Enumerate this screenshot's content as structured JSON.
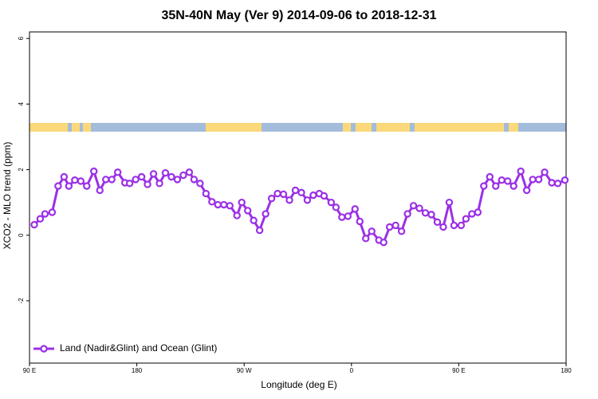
{
  "chart_data": {
    "type": "line",
    "title": "35N-40N May (Ver 9)   2014-09-06 to 2018-12-31",
    "x_label": "Longitude (deg E)",
    "y_label": "XCO2 - MLO trend (ppm)",
    "xlim": [
      90,
      540
    ],
    "ylim": [
      -3.9,
      6.2
    ],
    "xticks": [
      {
        "value": 90,
        "label": "90 E"
      },
      {
        "value": 180,
        "label": "180"
      },
      {
        "value": 270,
        "label": "90 W"
      },
      {
        "value": 360,
        "label": "0"
      },
      {
        "value": 450,
        "label": "90 E"
      },
      {
        "value": 540,
        "label": "180"
      }
    ],
    "yticks": [
      -2,
      0,
      2,
      4,
      6
    ],
    "legend": "bottom-left",
    "x": [
      94,
      99,
      103,
      109,
      114,
      119,
      123,
      128,
      133,
      138,
      144,
      149,
      154,
      159,
      164,
      170,
      174,
      179,
      184,
      189,
      194,
      199,
      204,
      209,
      214,
      219,
      224,
      228,
      233,
      238,
      243,
      248,
      253,
      258,
      264,
      268,
      273,
      278,
      283,
      288,
      293,
      298,
      303,
      308,
      313,
      318,
      323,
      328,
      333,
      337,
      343,
      347,
      352,
      357,
      363,
      367,
      372,
      377,
      383,
      387,
      392,
      397,
      402,
      407,
      412,
      417,
      422,
      427,
      432,
      437,
      442,
      446,
      452,
      456,
      461,
      466,
      471,
      476,
      481,
      486,
      491,
      496,
      502,
      507,
      512,
      517,
      522,
      528,
      533,
      539
    ],
    "series": [
      {
        "name": "Land (Nadir&Glint) and Ocean (Glint)",
        "color": "#9b30e6",
        "values": [
          0.32,
          0.5,
          0.65,
          0.7,
          1.5,
          1.78,
          1.5,
          1.68,
          1.65,
          1.5,
          1.95,
          1.37,
          1.7,
          1.7,
          1.92,
          1.6,
          1.58,
          1.7,
          1.78,
          1.55,
          1.87,
          1.58,
          1.9,
          1.78,
          1.7,
          1.83,
          1.92,
          1.7,
          1.58,
          1.27,
          1.02,
          0.93,
          0.93,
          0.9,
          0.6,
          1.0,
          0.75,
          0.45,
          0.15,
          0.65,
          1.12,
          1.27,
          1.25,
          1.07,
          1.37,
          1.3,
          1.07,
          1.22,
          1.27,
          1.2,
          1.0,
          0.85,
          0.55,
          0.58,
          0.8,
          0.42,
          -0.1,
          0.12,
          -0.15,
          -0.22,
          0.25,
          0.3,
          0.12,
          0.65,
          0.9,
          0.82,
          0.68,
          0.63,
          0.4,
          0.25,
          1.0,
          0.3,
          0.3,
          0.5,
          0.65,
          0.7,
          1.5,
          1.78,
          1.5,
          1.68,
          1.65,
          1.5,
          1.95,
          1.37,
          1.7,
          1.7,
          1.92,
          1.6,
          1.58,
          1.68
        ]
      }
    ]
  }
}
